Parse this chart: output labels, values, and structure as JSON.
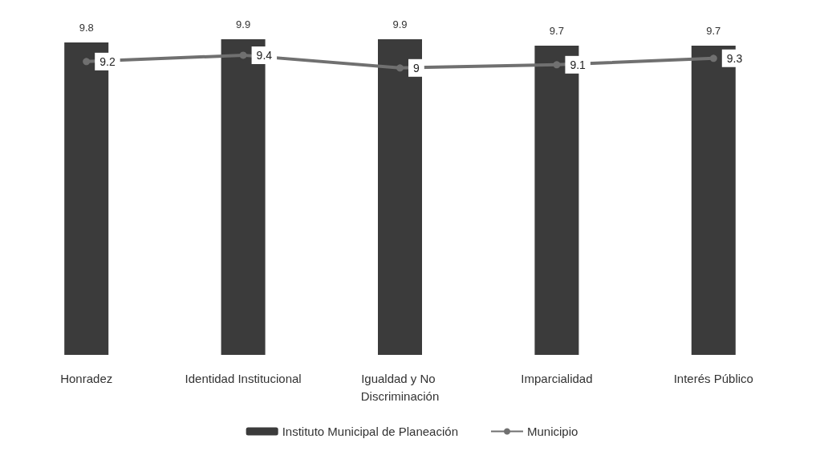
{
  "chart_data": {
    "type": "bar",
    "categories": [
      "Honradez",
      "Identidad Institucional",
      "Igualdad y No Discriminación",
      "Imparcialidad",
      "Interés Público"
    ],
    "series": [
      {
        "name": "Instituto Municipal de Planeación",
        "color": "#3b3b3b",
        "values": [
          9.8,
          9.9,
          9.9,
          9.7,
          9.7
        ]
      },
      {
        "name": "Municipio",
        "type": "line",
        "color": "#707070",
        "values": [
          9.2,
          9.4,
          9,
          9.1,
          9.3
        ]
      }
    ],
    "data_labels": true,
    "legend": "bottom",
    "marker": "circle"
  }
}
